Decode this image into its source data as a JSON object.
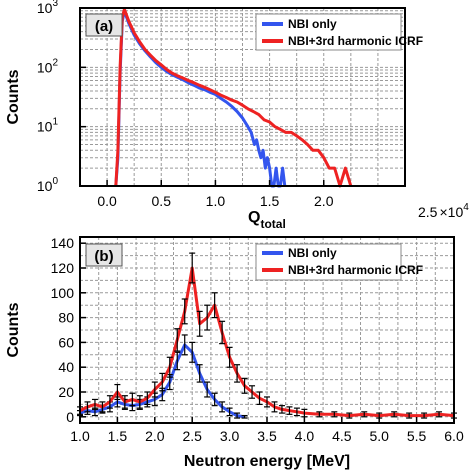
{
  "colors": {
    "nbi_only": "#3355ee",
    "nbi_icrf": "#ee2222",
    "error_bar": "#000000",
    "grid": "#9a9a9a",
    "label_box": "#e6e6e6"
  },
  "chart_data": [
    {
      "panel_label": "(a)",
      "type": "line",
      "xlabel": "Q",
      "xlabel_sub": "total",
      "ylabel": "Counts",
      "x_multiplier": "2.5",
      "x_multiplier_base": "10",
      "x_multiplier_exp": "4",
      "xlim": [
        -0.25,
        2.75
      ],
      "ylim": [
        1,
        1000
      ],
      "yscale": "log",
      "grid": true,
      "legend_position": "top-right",
      "x_ticks": [
        {
          "value": 0.0,
          "label": "0.0"
        },
        {
          "value": 0.5,
          "label": "0.5"
        },
        {
          "value": 1.0,
          "label": "1.0"
        },
        {
          "value": 1.5,
          "label": "1.5"
        },
        {
          "value": 2.0,
          "label": "2.0"
        }
      ],
      "y_ticks": [
        {
          "value": 1,
          "base": "10",
          "exp": "0"
        },
        {
          "value": 10,
          "base": "10",
          "exp": "1"
        },
        {
          "value": 100,
          "base": "10",
          "exp": "2"
        },
        {
          "value": 1000,
          "base": "10",
          "exp": "3"
        }
      ],
      "series": [
        {
          "name": "NBI only",
          "color": "#3355ee",
          "x": [
            0.08,
            0.1,
            0.12,
            0.14,
            0.16,
            0.18,
            0.2,
            0.25,
            0.3,
            0.35,
            0.4,
            0.45,
            0.5,
            0.55,
            0.6,
            0.65,
            0.7,
            0.75,
            0.8,
            0.85,
            0.9,
            0.95,
            1.0,
            1.05,
            1.1,
            1.15,
            1.2,
            1.25,
            1.3,
            1.33,
            1.36,
            1.38,
            1.4,
            1.42,
            1.44,
            1.46,
            1.48,
            1.5,
            1.52,
            1.54,
            1.56,
            1.58,
            1.6,
            1.62,
            1.64
          ],
          "y": [
            1,
            3,
            80,
            600,
            900,
            700,
            550,
            350,
            250,
            190,
            150,
            120,
            100,
            85,
            75,
            68,
            62,
            55,
            50,
            45,
            42,
            38,
            35,
            30,
            26,
            22,
            18,
            14,
            10,
            8,
            5,
            6,
            4,
            3,
            4,
            2,
            3,
            2,
            1,
            1,
            2,
            1,
            1,
            2,
            1
          ]
        },
        {
          "name": "NBI+3rd harmonic ICRF",
          "color": "#ee2222",
          "x": [
            0.08,
            0.1,
            0.12,
            0.14,
            0.16,
            0.18,
            0.2,
            0.25,
            0.3,
            0.35,
            0.4,
            0.45,
            0.5,
            0.55,
            0.6,
            0.65,
            0.7,
            0.75,
            0.8,
            0.85,
            0.9,
            0.95,
            1.0,
            1.05,
            1.1,
            1.15,
            1.2,
            1.25,
            1.3,
            1.35,
            1.4,
            1.45,
            1.5,
            1.55,
            1.6,
            1.65,
            1.7,
            1.75,
            1.8,
            1.85,
            1.9,
            1.95,
            2.0,
            2.05,
            2.1,
            2.15,
            2.2,
            2.25
          ],
          "y": [
            1,
            4,
            100,
            700,
            950,
            750,
            600,
            380,
            270,
            200,
            160,
            130,
            110,
            92,
            80,
            72,
            66,
            60,
            55,
            50,
            46,
            42,
            38,
            34,
            31,
            28,
            26,
            23,
            20,
            18,
            16,
            13,
            12,
            10,
            9,
            8,
            8,
            7,
            6,
            5,
            4,
            4,
            3,
            2,
            2,
            1,
            2,
            1
          ]
        }
      ]
    },
    {
      "panel_label": "(b)",
      "type": "line",
      "xlabel": "Neutron energy [MeV]",
      "ylabel": "Counts",
      "xlim": [
        1.0,
        6.0
      ],
      "ylim": [
        -5,
        145
      ],
      "grid": true,
      "error_bars": true,
      "legend_position": "top-right",
      "x_ticks": [
        {
          "value": 1.0,
          "label": "1.0"
        },
        {
          "value": 1.5,
          "label": "1.5"
        },
        {
          "value": 2.0,
          "label": "2.0"
        },
        {
          "value": 2.5,
          "label": "2.5"
        },
        {
          "value": 3.0,
          "label": "3.0"
        },
        {
          "value": 3.5,
          "label": "3.5"
        },
        {
          "value": 4.0,
          "label": "4.0"
        },
        {
          "value": 4.5,
          "label": "4.5"
        },
        {
          "value": 5.0,
          "label": "5.0"
        },
        {
          "value": 5.5,
          "label": "5.5"
        },
        {
          "value": 6.0,
          "label": "6.0"
        }
      ],
      "y_ticks": [
        {
          "value": 0,
          "label": "0"
        },
        {
          "value": 20,
          "label": "20"
        },
        {
          "value": 40,
          "label": "40"
        },
        {
          "value": 60,
          "label": "60"
        },
        {
          "value": 80,
          "label": "80"
        },
        {
          "value": 100,
          "label": "100"
        },
        {
          "value": 120,
          "label": "120"
        },
        {
          "value": 140,
          "label": "140"
        }
      ],
      "series": [
        {
          "name": "NBI only",
          "color": "#3355ee",
          "x": [
            1.0,
            1.1,
            1.2,
            1.3,
            1.4,
            1.5,
            1.6,
            1.7,
            1.8,
            1.9,
            2.0,
            2.1,
            2.2,
            2.3,
            2.4,
            2.5,
            2.6,
            2.7,
            2.8,
            2.9,
            3.0,
            3.1,
            3.2
          ],
          "y": [
            3,
            5,
            4,
            6,
            8,
            12,
            10,
            9,
            10,
            12,
            14,
            18,
            28,
            45,
            58,
            52,
            35,
            22,
            14,
            8,
            4,
            1,
            0
          ],
          "err": [
            2,
            3,
            3,
            3,
            4,
            4,
            4,
            4,
            4,
            4,
            5,
            5,
            6,
            7,
            8,
            8,
            7,
            6,
            5,
            4,
            3,
            2,
            1
          ]
        },
        {
          "name": "NBI+3rd harmonic ICRF",
          "color": "#ee2222",
          "x": [
            1.0,
            1.1,
            1.2,
            1.3,
            1.4,
            1.5,
            1.6,
            1.7,
            1.8,
            1.9,
            2.0,
            2.1,
            2.2,
            2.3,
            2.4,
            2.5,
            2.6,
            2.7,
            2.8,
            2.9,
            3.0,
            3.1,
            3.2,
            3.3,
            3.4,
            3.5,
            3.6,
            3.7,
            3.8,
            3.9,
            4.0,
            4.2,
            4.4,
            4.6,
            4.8,
            5.0,
            5.2,
            5.4,
            5.6,
            5.8,
            6.0
          ],
          "y": [
            5,
            8,
            10,
            8,
            12,
            20,
            12,
            14,
            12,
            15,
            22,
            28,
            40,
            62,
            85,
            120,
            75,
            80,
            90,
            68,
            48,
            35,
            25,
            20,
            15,
            12,
            8,
            6,
            5,
            4,
            3,
            2,
            2,
            1,
            2,
            1,
            2,
            1,
            1,
            2,
            1
          ],
          "err": [
            3,
            4,
            4,
            4,
            5,
            6,
            5,
            5,
            5,
            5,
            6,
            7,
            8,
            9,
            10,
            12,
            10,
            10,
            10,
            9,
            8,
            7,
            6,
            5,
            5,
            4,
            4,
            3,
            3,
            3,
            3,
            2,
            2,
            2,
            2,
            2,
            2,
            2,
            2,
            2,
            2
          ]
        }
      ]
    }
  ]
}
